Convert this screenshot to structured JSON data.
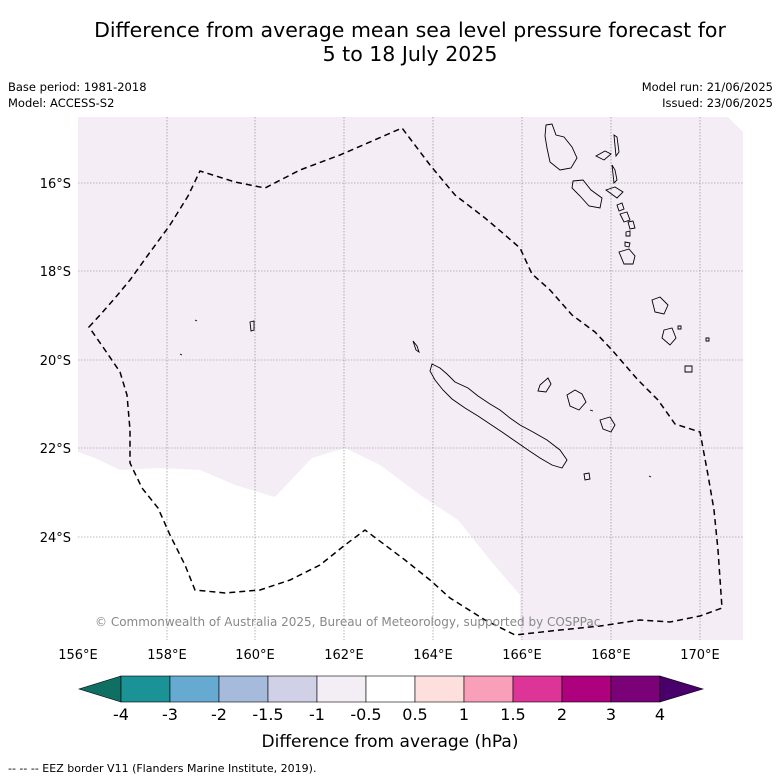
{
  "title": {
    "line1": "Difference from average mean sea level pressure forecast for",
    "line2": "5 to 18 July 2025"
  },
  "meta": {
    "base_period": "Base period: 1981-2018",
    "model": "Model: ACCESS-S2",
    "model_run": "Model run: 21/06/2025",
    "issued": "Issued: 23/06/2025"
  },
  "map": {
    "lat_labels": [
      "16°S",
      "18°S",
      "20°S",
      "22°S",
      "24°S"
    ],
    "lon_labels": [
      "156°E",
      "158°E",
      "160°E",
      "162°E",
      "164°E",
      "166°E",
      "168°E",
      "170°E"
    ],
    "copyright": "© Commonwealth of Australia 2025, Bureau of Meteorology, supported by COSPPac",
    "colors": {
      "anomaly_fill": "#f4edf6",
      "neutral_fill": "#ffffff",
      "land_outline": "#000000",
      "gridline": "#808080"
    }
  },
  "colorbar": {
    "tick_labels": [
      "-4",
      "-3",
      "-2",
      "-1.5",
      "-1",
      "-0.5",
      "0.5",
      "1",
      "1.5",
      "2",
      "3",
      "4"
    ],
    "colors": [
      "#0f6f62",
      "#1a9296",
      "#66aad2",
      "#a6bbdb",
      "#d0d1e6",
      "#f3eef6",
      "#ffffff",
      "#fde0dd",
      "#f99fba",
      "#dd3497",
      "#ad017e",
      "#7a0177",
      "#49006a"
    ],
    "label": "Difference from average (hPa)"
  },
  "footnote": "--  --  -- EEZ border V11 (Flanders Marine Institute, 2019)."
}
